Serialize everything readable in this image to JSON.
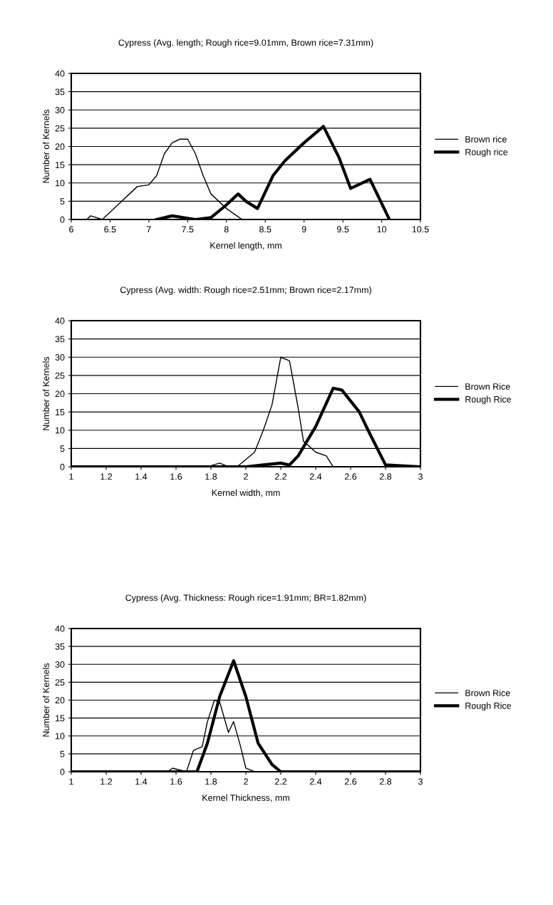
{
  "chart_data": [
    {
      "type": "line",
      "title": "Cypress (Avg. length; Rough rice=9.01mm, Brown rice=7.31mm)",
      "xlabel": "Kernel length, mm",
      "ylabel": "Number of Kernels",
      "xlim": [
        6,
        10.5
      ],
      "xticks": [
        6,
        6.5,
        7,
        7.5,
        8,
        8.5,
        9,
        9.5,
        10,
        10.5
      ],
      "ylim": [
        0,
        40
      ],
      "yticks": [
        0,
        5,
        10,
        15,
        20,
        25,
        30,
        35,
        40
      ],
      "grid": "y",
      "legend": "right",
      "marker": "none",
      "line_style": "solid",
      "series": [
        {
          "name": "Brown rice",
          "color": "#000000",
          "x": [
            6.2,
            6.25,
            6.4,
            6.5,
            6.6,
            6.75,
            6.85,
            7.0,
            7.1,
            7.2,
            7.3,
            7.4,
            7.5,
            7.6,
            7.7,
            7.8,
            8.0,
            8.2
          ],
          "values": [
            0,
            1,
            0,
            2,
            4,
            7,
            9,
            9.5,
            12,
            18,
            21,
            22,
            22,
            18,
            12,
            7,
            3,
            0
          ]
        },
        {
          "name": "Rough rice",
          "color": "#000000",
          "x": [
            7.1,
            7.3,
            7.6,
            7.8,
            8.0,
            8.15,
            8.25,
            8.4,
            8.6,
            8.75,
            9.0,
            9.25,
            9.45,
            9.6,
            9.85,
            10.1
          ],
          "values": [
            0,
            1,
            0,
            0.5,
            4,
            7,
            5,
            3,
            12,
            16,
            21,
            25.5,
            17,
            8.5,
            11,
            0
          ]
        }
      ]
    },
    {
      "type": "line",
      "title": "Cypress (Avg. width: Rough rice=2.51mm; Brown rice=2.17mm)",
      "xlabel": "Kernel width, mm",
      "ylabel": "Number of Kernels",
      "xlim": [
        1,
        3
      ],
      "xticks": [
        1,
        1.2,
        1.4,
        1.6,
        1.8,
        2,
        2.2,
        2.4,
        2.6,
        2.8,
        3
      ],
      "ylim": [
        0,
        40
      ],
      "yticks": [
        0,
        5,
        10,
        15,
        20,
        25,
        30,
        35,
        40
      ],
      "grid": "y",
      "legend": "right",
      "marker": "none",
      "line_style": "solid",
      "series": [
        {
          "name": "Brown Rice",
          "color": "#000000",
          "x": [
            1,
            1.78,
            1.85,
            1.9,
            1.95,
            2.05,
            2.1,
            2.15,
            2.2,
            2.25,
            2.3,
            2.33,
            2.4,
            2.46,
            2.5
          ],
          "values": [
            0,
            0,
            1,
            0,
            0,
            4,
            10,
            17,
            30,
            29,
            16,
            7,
            4,
            3,
            0
          ]
        },
        {
          "name": "Rough Rice",
          "color": "#000000",
          "x": [
            1,
            2.0,
            2.1,
            2.2,
            2.25,
            2.3,
            2.4,
            2.5,
            2.55,
            2.65,
            2.7,
            2.8,
            3
          ],
          "values": [
            0,
            0,
            0.5,
            1,
            0.5,
            3,
            11,
            21.5,
            21,
            15,
            10,
            0.5,
            0
          ]
        }
      ]
    },
    {
      "type": "line",
      "title": "Cypress (Avg. Thickness: Rough rice=1.91mm; BR=1.82mm)",
      "xlabel": "Kernel Thickness, mm",
      "ylabel": "Number of Kernels",
      "xlim": [
        1,
        3
      ],
      "xticks": [
        1,
        1.2,
        1.4,
        1.6,
        1.8,
        2,
        2.2,
        2.4,
        2.6,
        2.8,
        3
      ],
      "ylim": [
        0,
        40
      ],
      "yticks": [
        0,
        5,
        10,
        15,
        20,
        25,
        30,
        35,
        40
      ],
      "grid": "y",
      "legend": "right",
      "marker": "none",
      "line_style": "solid",
      "series": [
        {
          "name": "Brown Rice",
          "color": "#000000",
          "x": [
            1,
            1.55,
            1.58,
            1.62,
            1.66,
            1.7,
            1.75,
            1.78,
            1.82,
            1.85,
            1.9,
            1.93,
            1.97,
            2.0,
            2.05,
            3
          ],
          "values": [
            0,
            0,
            1,
            0.5,
            0,
            6,
            7,
            14,
            20,
            19.5,
            11,
            14,
            7,
            1,
            0,
            0
          ]
        },
        {
          "name": "Rough Rice",
          "color": "#000000",
          "x": [
            1,
            1.72,
            1.78,
            1.85,
            1.93,
            2.0,
            2.07,
            2.15,
            2.2,
            3
          ],
          "values": [
            0,
            0,
            8,
            21,
            31,
            21,
            8,
            2,
            0,
            0
          ]
        }
      ]
    }
  ]
}
